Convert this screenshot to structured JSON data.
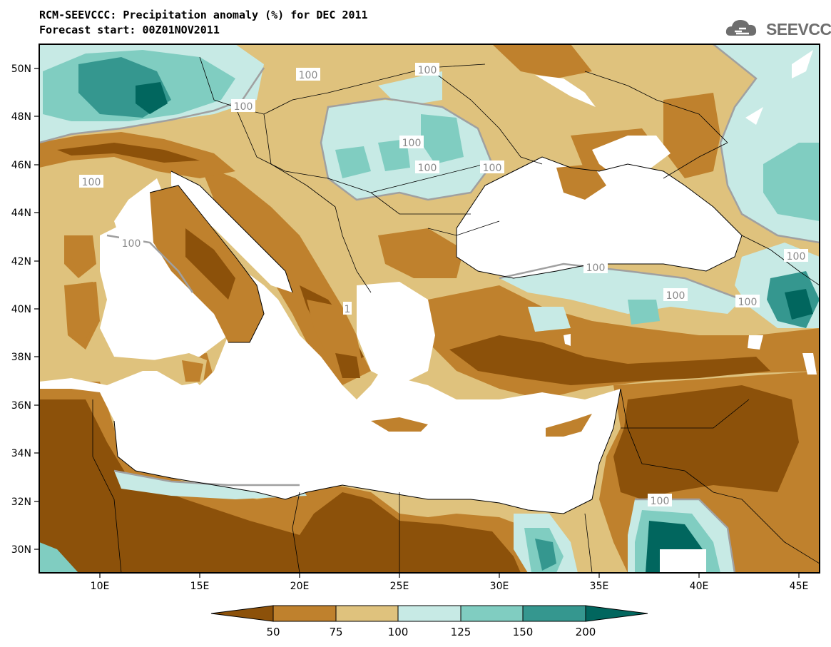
{
  "header": {
    "title": "RCM-SEEVCCC: Precipitation anomaly (%) for DEC 2011",
    "subtitle": "Forecast start: 00Z01NOV2011",
    "logo_text": "SEEVCCC"
  },
  "map": {
    "lon_ticks": [
      "10E",
      "15E",
      "20E",
      "25E",
      "30E",
      "35E",
      "40E",
      "45E"
    ],
    "lat_ticks": [
      "50N",
      "48N",
      "46N",
      "44N",
      "42N",
      "40N",
      "38N",
      "36N",
      "34N",
      "32N",
      "30N"
    ],
    "contour_labels": [
      "100",
      "100",
      "100",
      "100",
      "100",
      "100",
      "100",
      "100",
      "100",
      "100",
      "100",
      "100",
      "100",
      "100",
      "1"
    ]
  },
  "colorbar": {
    "labels": [
      "50",
      "75",
      "100",
      "125",
      "150",
      "200"
    ],
    "colors": [
      "#8c510a",
      "#bf812d",
      "#dfc27d",
      "#c7eae5",
      "#80cdc1",
      "#35978f",
      "#01665e"
    ]
  },
  "palette": {
    "sea": "#ffffff",
    "very_dry": "#8c510a",
    "dry": "#bf812d",
    "slightly_dry": "#dfc27d",
    "slightly_wet": "#c7eae5",
    "wet": "#80cdc1",
    "very_wet": "#35978f",
    "extreme_wet": "#01665e",
    "contour_100": "#a0a0a0"
  }
}
